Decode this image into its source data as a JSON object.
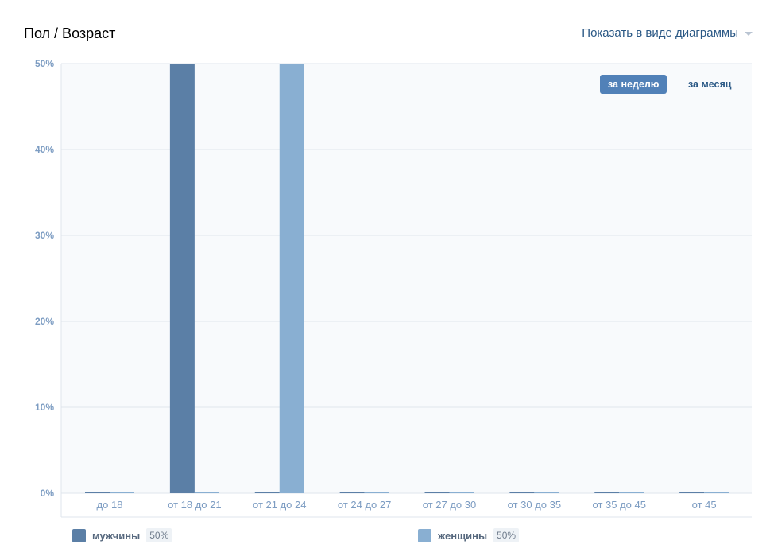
{
  "header": {
    "title": "Пол / Возраст",
    "view_toggle_label": "Показать в виде диаграммы"
  },
  "period": {
    "week_label": "за неделю",
    "month_label": "за месяц",
    "active": "week"
  },
  "colors": {
    "men": "#5b7fa6",
    "women": "#89afd2",
    "grid": "#dfe5ec",
    "plot_bg": "#f8fafc",
    "axis_text": "#7c9cc2"
  },
  "chart_data": {
    "type": "bar",
    "title": "Пол / Возраст",
    "xlabel": "",
    "ylabel": "",
    "categories": [
      "до 18",
      "от 18 до 21",
      "от 21 до 24",
      "от 24 до 27",
      "от 27 до 30",
      "от 30 до 35",
      "от 35 до 45",
      "от 45"
    ],
    "series": [
      {
        "name": "мужчины",
        "values": [
          0,
          50,
          0,
          0,
          0,
          0,
          0,
          0
        ]
      },
      {
        "name": "женщины",
        "values": [
          0,
          0,
          50,
          0,
          0,
          0,
          0,
          0
        ]
      }
    ],
    "ylim": [
      0,
      50
    ],
    "yticks": [
      "0%",
      "10%",
      "20%",
      "30%",
      "40%",
      "50%"
    ],
    "grid": true,
    "legend_position": "bottom"
  },
  "legend": [
    {
      "label": "мужчины",
      "value": "50%"
    },
    {
      "label": "женщины",
      "value": "50%"
    }
  ]
}
